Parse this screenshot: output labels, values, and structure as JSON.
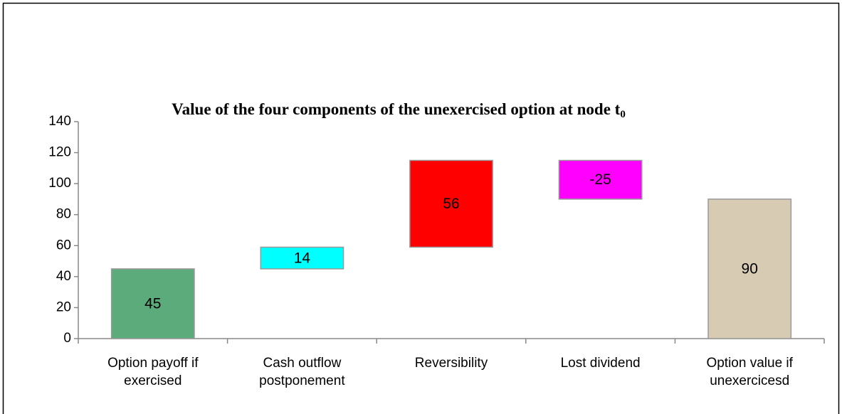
{
  "chart_data": {
    "type": "waterfall",
    "title": "Value of the four components of the unexercised option at node t",
    "title_subscript": "0",
    "categories": [
      "Option payoff if exercised",
      "Cash outflow postponement",
      "Reversibility",
      "Lost dividend",
      "Option value if unexercicesd"
    ],
    "values": [
      45,
      14,
      56,
      -25,
      90
    ],
    "colors": [
      "#5bab7b",
      "#00ffff",
      "#ff0000",
      "#ff00ff",
      "#d8cbb3"
    ],
    "ylim": [
      0,
      140
    ],
    "yticks": [
      0,
      20,
      40,
      60,
      80,
      100,
      120,
      140
    ]
  }
}
